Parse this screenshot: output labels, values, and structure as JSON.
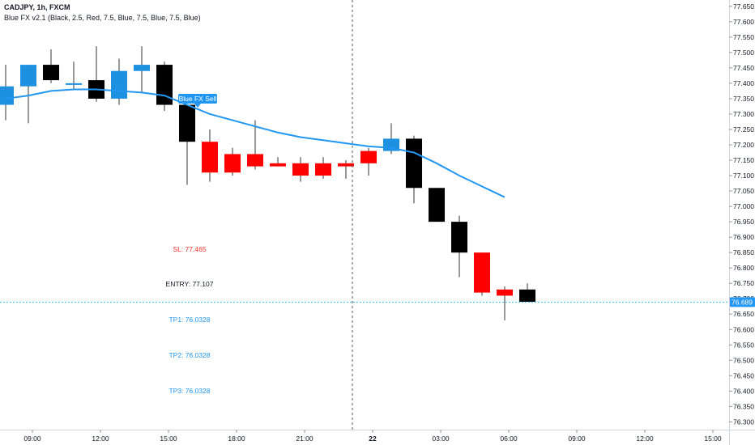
{
  "header": {
    "symbol": "CADJPY, 1h, FXCM",
    "indicator": "Blue FX v2.1 (Black, 2.5, Red, 7.5, Blue, 7.5, Blue, 7.5, Blue)"
  },
  "levels": {
    "sl": "SL: 77.465",
    "entry": "ENTRY: 77.107",
    "tp1": "TP1: 76.0328",
    "tp2": "TP2: 76.0328",
    "tp3": "TP3: 76.0328"
  },
  "signal_label": "Blue FX Sell",
  "current_price_label": "76.689",
  "colors": {
    "black_candle": "#000000",
    "red_candle": "#ff0000",
    "blue_candle": "#1e90e0",
    "ma_line": "#2196f3",
    "sl_text": "#ff3030",
    "entry_text": "#131722",
    "tp_text": "#2196f3",
    "price_line": "#26c6da",
    "price_label_bg": "#2196f3",
    "signal_bg": "#2196f3",
    "axis_text": "#131722"
  },
  "chart_data": {
    "type": "candlestick",
    "symbol": "CADJPY",
    "timeframe": "1h",
    "ylim": [
      76.28,
      77.66
    ],
    "y_ticks": [
      "77.650",
      "77.600",
      "77.550",
      "77.500",
      "77.450",
      "77.400",
      "77.350",
      "77.300",
      "77.250",
      "77.200",
      "77.150",
      "77.100",
      "77.050",
      "77.000",
      "76.950",
      "76.900",
      "76.850",
      "76.800",
      "76.750",
      "76.700",
      "76.650",
      "76.600",
      "76.550",
      "76.500",
      "76.450",
      "76.400",
      "76.350",
      "76.300"
    ],
    "x_ticks": [
      {
        "label": "09:00",
        "bar": 1
      },
      {
        "label": "12:00",
        "bar": 4
      },
      {
        "label": "15:00",
        "bar": 7
      },
      {
        "label": "18:00",
        "bar": 10
      },
      {
        "label": "21:00",
        "bar": 13
      },
      {
        "label": "22",
        "bar": 16
      },
      {
        "label": "03:00",
        "bar": 19
      },
      {
        "label": "06:00",
        "bar": 22
      },
      {
        "label": "09:00",
        "bar": 25
      },
      {
        "label": "12:00",
        "bar": 28
      },
      {
        "label": "15:00",
        "bar": 31
      }
    ],
    "candles": [
      {
        "o": 77.33,
        "h": 77.46,
        "l": 77.28,
        "c": 77.39,
        "color": "blue"
      },
      {
        "o": 77.39,
        "h": 77.46,
        "l": 77.27,
        "c": 77.46,
        "color": "blue"
      },
      {
        "o": 77.46,
        "h": 77.51,
        "l": 77.4,
        "c": 77.41,
        "color": "black"
      },
      {
        "o": 77.4,
        "h": 77.47,
        "l": 77.38,
        "c": 77.4,
        "color": "blue"
      },
      {
        "o": 77.41,
        "h": 77.52,
        "l": 77.34,
        "c": 77.35,
        "color": "black"
      },
      {
        "o": 77.35,
        "h": 77.48,
        "l": 77.33,
        "c": 77.44,
        "color": "blue"
      },
      {
        "o": 77.44,
        "h": 77.52,
        "l": 77.37,
        "c": 77.46,
        "color": "blue"
      },
      {
        "o": 77.46,
        "h": 77.47,
        "l": 77.31,
        "c": 77.33,
        "color": "black"
      },
      {
        "o": 77.33,
        "h": 77.33,
        "l": 77.07,
        "c": 77.21,
        "color": "black"
      },
      {
        "o": 77.21,
        "h": 77.25,
        "l": 77.08,
        "c": 77.11,
        "color": "red"
      },
      {
        "o": 77.17,
        "h": 77.19,
        "l": 77.1,
        "c": 77.11,
        "color": "red"
      },
      {
        "o": 77.17,
        "h": 77.28,
        "l": 77.12,
        "c": 77.13,
        "color": "red"
      },
      {
        "o": 77.14,
        "h": 77.16,
        "l": 77.13,
        "c": 77.13,
        "color": "red"
      },
      {
        "o": 77.14,
        "h": 77.16,
        "l": 77.08,
        "c": 77.1,
        "color": "red"
      },
      {
        "o": 77.14,
        "h": 77.16,
        "l": 77.09,
        "c": 77.1,
        "color": "red"
      },
      {
        "o": 77.14,
        "h": 77.15,
        "l": 77.09,
        "c": 77.13,
        "color": "red"
      },
      {
        "o": 77.18,
        "h": 77.19,
        "l": 77.1,
        "c": 77.14,
        "color": "red"
      },
      {
        "o": 77.18,
        "h": 77.27,
        "l": 77.17,
        "c": 77.22,
        "color": "blue"
      },
      {
        "o": 77.22,
        "h": 77.23,
        "l": 77.01,
        "c": 77.06,
        "color": "black"
      },
      {
        "o": 77.06,
        "h": 77.06,
        "l": 76.95,
        "c": 76.95,
        "color": "black"
      },
      {
        "o": 76.95,
        "h": 76.97,
        "l": 76.77,
        "c": 76.85,
        "color": "black"
      },
      {
        "o": 76.85,
        "h": 76.85,
        "l": 76.71,
        "c": 76.72,
        "color": "red"
      },
      {
        "o": 76.73,
        "h": 76.74,
        "l": 76.63,
        "c": 76.71,
        "color": "red"
      },
      {
        "o": 76.73,
        "h": 76.75,
        "l": 76.69,
        "c": 76.69,
        "color": "black"
      }
    ],
    "ma": [
      77.35,
      77.36,
      77.375,
      77.38,
      77.38,
      77.375,
      77.37,
      77.36,
      77.33,
      77.3,
      77.28,
      77.26,
      77.24,
      77.225,
      77.215,
      77.205,
      77.195,
      77.19,
      77.175,
      77.14,
      77.1,
      77.065,
      77.03
    ],
    "levels": {
      "sl": 77.465,
      "entry": 77.107,
      "tp1": 76.0328,
      "tp2": 76.0328,
      "tp3": 76.0328
    },
    "current_price": 76.689,
    "signal": {
      "text": "Blue FX Sell",
      "bar": 8
    },
    "session_break_bar": 15.5
  }
}
